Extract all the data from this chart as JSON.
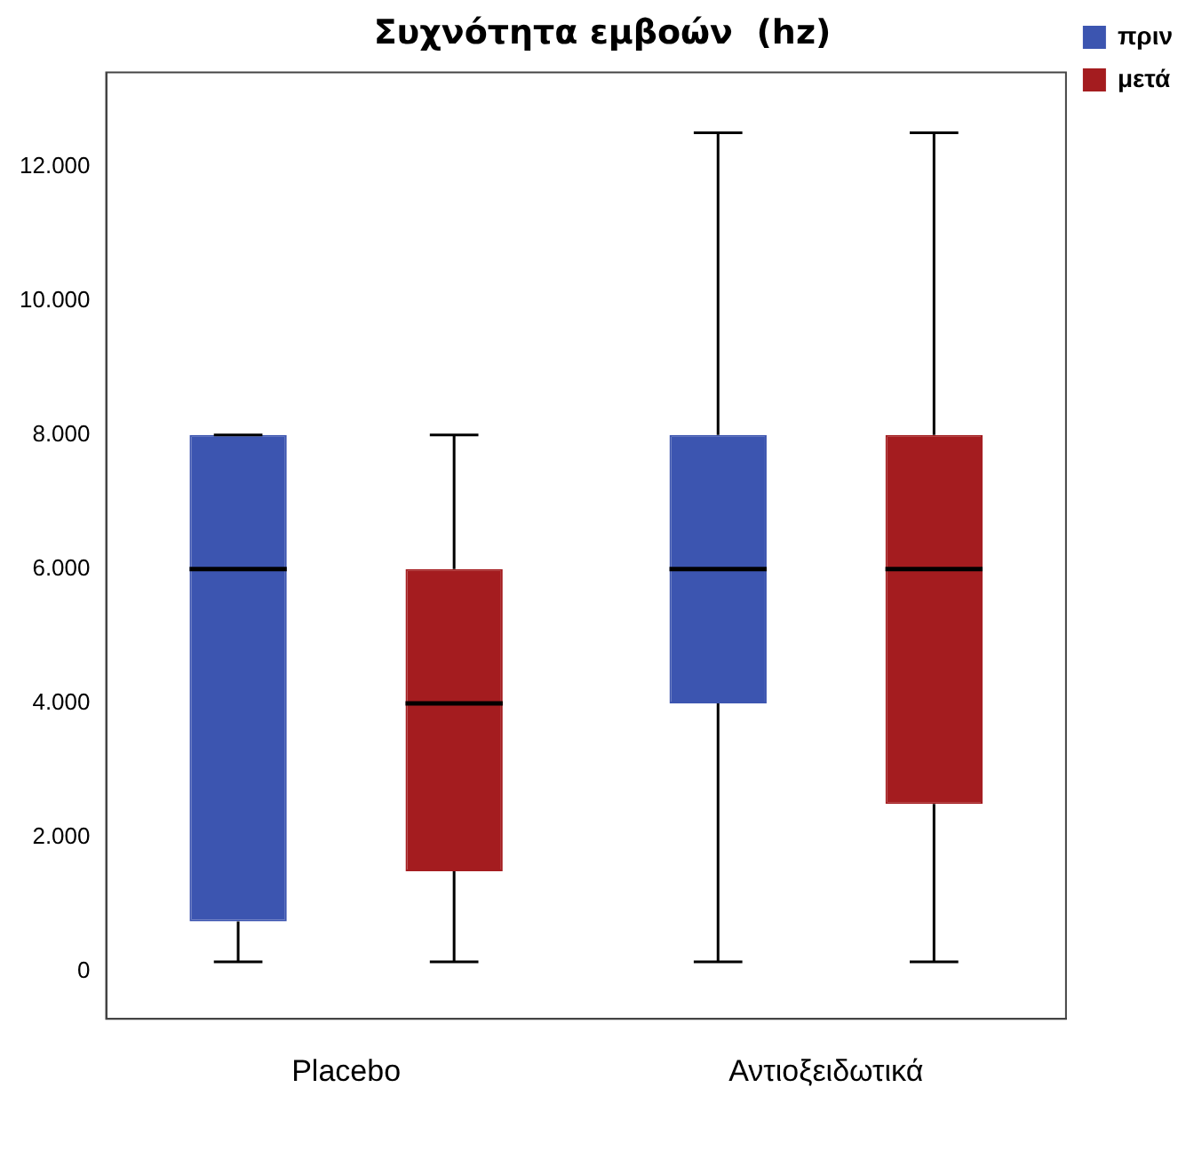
{
  "chart_data": {
    "type": "box",
    "title": "Συχνότητα εμβοών  (hz)",
    "categories": [
      "Placebo",
      "Αντιοξειδωτικά"
    ],
    "series": [
      {
        "name": "πριν",
        "color": "#3c55b0",
        "boxes": [
          {
            "low": 150,
            "q1": 750,
            "median": 6000,
            "q3": 8000,
            "high": 8000
          },
          {
            "low": 150,
            "q1": 4000,
            "median": 6000,
            "q3": 8000,
            "high": 12500
          }
        ]
      },
      {
        "name": "μετά",
        "color": "#a41c1f",
        "boxes": [
          {
            "low": 150,
            "q1": 1500,
            "median": 4000,
            "q3": 6000,
            "high": 8000
          },
          {
            "low": 150,
            "q1": 2500,
            "median": 6000,
            "q3": 8000,
            "high": 12500
          }
        ]
      }
    ],
    "ylim": [
      -700,
      13400
    ],
    "yticks": [
      0,
      {
        "value": 2000,
        "label": "2.000"
      },
      {
        "value": 4000,
        "label": "4.000"
      },
      {
        "value": 6000,
        "label": "6.000"
      },
      {
        "value": 8000,
        "label": "8.000"
      },
      {
        "value": 10000,
        "label": "10.000"
      },
      {
        "value": 12000,
        "label": "12.000"
      }
    ],
    "grid": false,
    "legend": "top right"
  }
}
